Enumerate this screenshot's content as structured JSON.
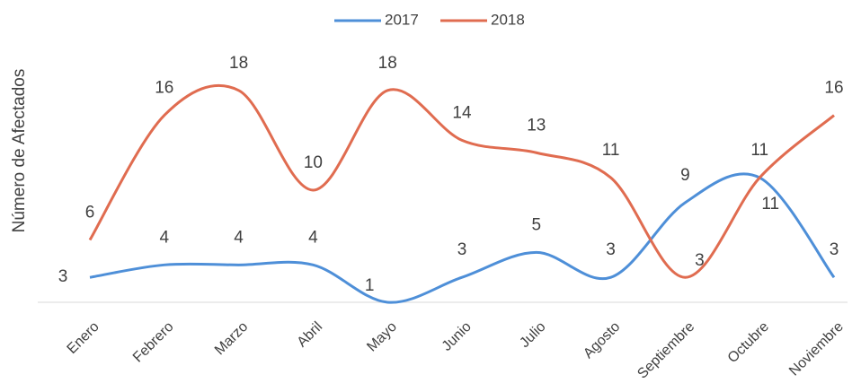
{
  "chart_data": {
    "type": "line",
    "y_label": "Número de Afectados",
    "categories": [
      "Enero",
      "Febrero",
      "Marzo",
      "Abril",
      "Mayo",
      "Junio",
      "Julio",
      "Agosto",
      "Septiembre",
      "Octubre",
      "Noviembre"
    ],
    "series": [
      {
        "name": "2017",
        "color": "#4e8fd8",
        "values": [
          3,
          4,
          4,
          4,
          1,
          3,
          5,
          3,
          9,
          11,
          3
        ]
      },
      {
        "name": "2018",
        "color": "#e06c50",
        "values": [
          6,
          16,
          18,
          10,
          18,
          14,
          13,
          11,
          3,
          11,
          16
        ]
      }
    ],
    "ylim": [
      1,
      20
    ],
    "legend": "top"
  }
}
